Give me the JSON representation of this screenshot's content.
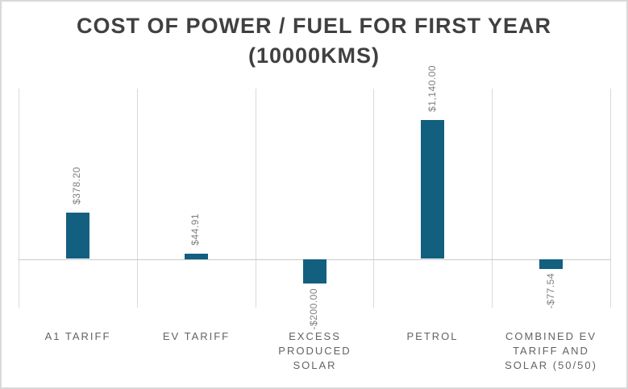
{
  "title": {
    "line1": "COST OF POWER / FUEL FOR FIRST YEAR",
    "line2": "(10000KMS)"
  },
  "chart_data": {
    "type": "bar",
    "title": "COST OF POWER / FUEL FOR FIRST YEAR (10000KMS)",
    "categories": [
      "A1 TARIFF",
      "EV TARIFF",
      "EXCESS PRODUCED SOLAR",
      "PETROL",
      "COMBINED EV TARIFF AND SOLAR (50/50)"
    ],
    "values": [
      378.2,
      44.91,
      -200.0,
      1140.0,
      -77.54
    ],
    "data_labels": [
      "$378.20",
      "$44.91",
      "-$200.00",
      "$1,140.00",
      "-$77.54"
    ],
    "xlabel": "",
    "ylabel": "",
    "ylim": [
      -400,
      1400
    ],
    "grid": "vertical category separators only",
    "legend": "none",
    "data_label_rotation": "90deg reading bottom-to-top",
    "colors": {
      "bar": "#135F7F",
      "gridline": "#d9d9d9",
      "axis_line": "#c9c9c9",
      "title_text": "#404040",
      "category_text": "#636363",
      "data_label_text": "#7f7f7f",
      "background": "#ffffff",
      "border": "#d9d9d9"
    }
  }
}
